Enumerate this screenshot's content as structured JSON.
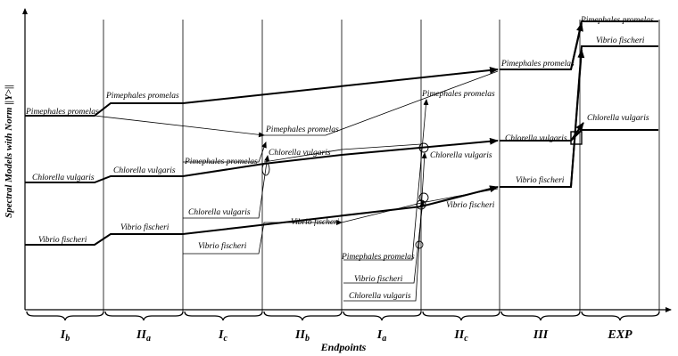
{
  "axes": {
    "y_label_prefix": "Spectral Models with Norm ",
    "y_label_norm": "||Y>||",
    "x_label": "Endpoints"
  },
  "segments": [
    {
      "main": "I",
      "sub": "b"
    },
    {
      "main": "II",
      "sub": "a"
    },
    {
      "main": "I",
      "sub": "c"
    },
    {
      "main": "II",
      "sub": "b"
    },
    {
      "main": "I",
      "sub": "a"
    },
    {
      "main": "II",
      "sub": "c"
    },
    {
      "main": "III",
      "sub": ""
    },
    {
      "main": "EXP",
      "sub": ""
    }
  ],
  "labels": {
    "ib_pime": "Pimephales promelas",
    "ib_chlo": "Chlorella vulgaris",
    "ib_vibr": "Vibrio fischeri",
    "iia_pime": "Pimephales promelas",
    "iia_chlo": "Chlorella vulgaris",
    "iia_vibr": "Vibrio fischeri",
    "ic_pime": "Pimephales promelas",
    "ic_chlo": "Chlorella vulgaris",
    "ic_vibr": "Vibrio fischeri",
    "iib_pime": "Pimephales promelas",
    "iib_chlo": "Chlorella vulgaris",
    "iib_vibr": "Vibrio fischeri",
    "ia_pime": "Pimephales promelas",
    "ia_vibr": "Vibrio fischeri",
    "ia_chlo": "Chlorella vulgaris",
    "iic_pime": "Pimephales promelas",
    "iic_chlo": "Chlorella vulgaris",
    "iic_vibr": "Vibrio fischeri",
    "iii_pime": "Pimephales promelas",
    "iii_chlo": "Chlorella vulgaris",
    "iii_vibr": "Vibrio fischeri",
    "exp_pime": "Pimephales promelas",
    "exp_vibr": "Vibrio fischeri",
    "exp_chlo": "Chlorella vulgaris"
  }
}
